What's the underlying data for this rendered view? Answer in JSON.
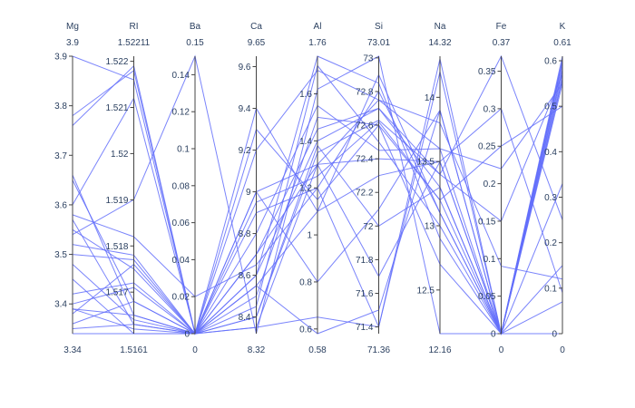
{
  "chart_data": {
    "type": "parallel_coordinates",
    "line_color": "#636efa",
    "dimensions": [
      {
        "label": "Mg",
        "range": [
          3.34,
          3.9
        ],
        "range_labels": {
          "min": "3.34",
          "max": "3.9"
        },
        "ticks": [
          {
            "v": 3.4,
            "t": "3.4"
          },
          {
            "v": 3.5,
            "t": "3.5"
          },
          {
            "v": 3.6,
            "t": "3.6"
          },
          {
            "v": 3.7,
            "t": "3.7"
          },
          {
            "v": 3.8,
            "t": "3.8"
          },
          {
            "v": 3.9,
            "t": "3.9"
          }
        ]
      },
      {
        "label": "RI",
        "range": [
          1.5161,
          1.52211
        ],
        "range_labels": {
          "min": "1.5161",
          "max": "1.52211"
        },
        "ticks": [
          {
            "v": 1.517,
            "t": "1.517"
          },
          {
            "v": 1.518,
            "t": "1.518"
          },
          {
            "v": 1.519,
            "t": "1.519"
          },
          {
            "v": 1.52,
            "t": "1.52"
          },
          {
            "v": 1.521,
            "t": "1.521"
          },
          {
            "v": 1.522,
            "t": "1.522"
          }
        ]
      },
      {
        "label": "Ba",
        "range": [
          0,
          0.15
        ],
        "range_labels": {
          "min": "0",
          "max": "0.15"
        },
        "ticks": [
          {
            "v": 0,
            "t": "0"
          },
          {
            "v": 0.02,
            "t": "0.02"
          },
          {
            "v": 0.04,
            "t": "0.04"
          },
          {
            "v": 0.06,
            "t": "0.06"
          },
          {
            "v": 0.08,
            "t": "0.08"
          },
          {
            "v": 0.1,
            "t": "0.1"
          },
          {
            "v": 0.12,
            "t": "0.12"
          },
          {
            "v": 0.14,
            "t": "0.14"
          }
        ]
      },
      {
        "label": "Ca",
        "range": [
          8.32,
          9.65
        ],
        "range_labels": {
          "min": "8.32",
          "max": "9.65"
        },
        "ticks": [
          {
            "v": 8.4,
            "t": "8.4"
          },
          {
            "v": 8.6,
            "t": "8.6"
          },
          {
            "v": 8.8,
            "t": "8.8"
          },
          {
            "v": 9,
            "t": "9"
          },
          {
            "v": 9.2,
            "t": "9.2"
          },
          {
            "v": 9.4,
            "t": "9.4"
          },
          {
            "v": 9.6,
            "t": "9.6"
          }
        ]
      },
      {
        "label": "Al",
        "range": [
          0.58,
          1.76
        ],
        "range_labels": {
          "min": "0.58",
          "max": "1.76"
        },
        "ticks": [
          {
            "v": 0.6,
            "t": "0.6"
          },
          {
            "v": 0.8,
            "t": "0.8"
          },
          {
            "v": 1,
            "t": "1"
          },
          {
            "v": 1.2,
            "t": "1.2"
          },
          {
            "v": 1.4,
            "t": "1.4"
          },
          {
            "v": 1.6,
            "t": "1.6"
          }
        ]
      },
      {
        "label": "Si",
        "range": [
          71.36,
          73.01
        ],
        "range_labels": {
          "min": "71.36",
          "max": "73.01"
        },
        "ticks": [
          {
            "v": 71.4,
            "t": "71.4"
          },
          {
            "v": 71.6,
            "t": "71.6"
          },
          {
            "v": 71.8,
            "t": "71.8"
          },
          {
            "v": 72,
            "t": "72"
          },
          {
            "v": 72.2,
            "t": "72.2"
          },
          {
            "v": 72.4,
            "t": "72.4"
          },
          {
            "v": 72.6,
            "t": "72.6"
          },
          {
            "v": 72.8,
            "t": "72.8"
          },
          {
            "v": 73,
            "t": "73"
          }
        ]
      },
      {
        "label": "Na",
        "range": [
          12.16,
          14.32
        ],
        "range_labels": {
          "min": "12.16",
          "max": "14.32"
        },
        "ticks": [
          {
            "v": 12.5,
            "t": "12.5"
          },
          {
            "v": 13,
            "t": "13"
          },
          {
            "v": 13.5,
            "t": "13.5"
          },
          {
            "v": 14,
            "t": "14"
          }
        ]
      },
      {
        "label": "Fe",
        "range": [
          0,
          0.37
        ],
        "range_labels": {
          "min": "0",
          "max": "0.37"
        },
        "ticks": [
          {
            "v": 0,
            "t": "0"
          },
          {
            "v": 0.05,
            "t": "0.05"
          },
          {
            "v": 0.1,
            "t": "0.1"
          },
          {
            "v": 0.15,
            "t": "0.15"
          },
          {
            "v": 0.2,
            "t": "0.2"
          },
          {
            "v": 0.25,
            "t": "0.25"
          },
          {
            "v": 0.3,
            "t": "0.3"
          },
          {
            "v": 0.35,
            "t": "0.35"
          }
        ]
      },
      {
        "label": "K",
        "range": [
          0,
          0.61
        ],
        "range_labels": {
          "min": "0",
          "max": "0.61"
        },
        "ticks": [
          {
            "v": 0,
            "t": "0"
          },
          {
            "v": 0.1,
            "t": "0.1"
          },
          {
            "v": 0.2,
            "t": "0.2"
          },
          {
            "v": 0.3,
            "t": "0.3"
          },
          {
            "v": 0.4,
            "t": "0.4"
          },
          {
            "v": 0.5,
            "t": "0.5"
          },
          {
            "v": 0.6,
            "t": "0.6"
          }
        ]
      }
    ],
    "records": [
      [
        3.9,
        1.5216,
        0,
        9.4,
        1.1,
        72.3,
        13.5,
        0.3,
        0.09
      ],
      [
        3.78,
        1.5218,
        0,
        9.3,
        1.15,
        72.6,
        13.2,
        0.25,
        0.5
      ],
      [
        3.76,
        1.5219,
        0,
        9.0,
        1.3,
        72.75,
        13.6,
        0.22,
        0.55
      ],
      [
        3.66,
        1.5165,
        0,
        8.7,
        1.45,
        72.7,
        13.4,
        0.15,
        0.57
      ],
      [
        3.65,
        1.5168,
        0,
        8.95,
        1.25,
        72.62,
        13.2,
        0.0,
        0.56
      ],
      [
        3.6,
        1.5212,
        0,
        9.0,
        0.8,
        72.1,
        13.9,
        0.0,
        0.58
      ],
      [
        3.58,
        1.5182,
        0.02,
        8.65,
        1.2,
        72.8,
        13.1,
        0.0,
        0.6
      ],
      [
        3.57,
        1.5163,
        0,
        8.5,
        1.5,
        72.6,
        12.7,
        0.0,
        0.61
      ],
      [
        3.55,
        1.5175,
        0,
        8.7,
        1.3,
        72.4,
        13.5,
        0.0,
        0.58
      ],
      [
        3.54,
        1.519,
        0.15,
        8.32,
        1.62,
        73.01,
        12.16,
        0.0,
        0.0
      ],
      [
        3.52,
        1.5178,
        0,
        8.8,
        1.55,
        72.45,
        13.6,
        0.0,
        0.55
      ],
      [
        3.5,
        1.5177,
        0,
        8.6,
        1.4,
        72.7,
        13.3,
        0.0,
        0.59
      ],
      [
        3.48,
        1.5164,
        0,
        8.45,
        1.72,
        72.5,
        13.0,
        0.0,
        0.6
      ],
      [
        3.42,
        1.5172,
        0,
        8.4,
        1.35,
        72.63,
        13.4,
        0.37,
        0.25
      ],
      [
        3.4,
        1.5171,
        0,
        8.55,
        1.1,
        72.9,
        13.1,
        0.0,
        0.07
      ],
      [
        3.39,
        1.5165,
        0,
        9.2,
        1.7,
        72.75,
        13.8,
        0.09,
        0.12
      ],
      [
        3.39,
        1.5162,
        0,
        8.9,
        1.2,
        71.4,
        14.3,
        0.0,
        0.6
      ],
      [
        3.36,
        1.5168,
        0,
        8.35,
        0.65,
        71.4,
        14.2,
        0.0,
        0.57
      ],
      [
        3.35,
        1.5163,
        0,
        8.55,
        0.58,
        71.5,
        13.9,
        0.0,
        0.56
      ],
      [
        3.38,
        1.5176,
        0,
        8.4,
        1.38,
        72.0,
        13.3,
        0.0,
        0.6
      ],
      [
        3.45,
        1.5161,
        0,
        8.35,
        1.3,
        71.7,
        13.5,
        0.0,
        0.15
      ],
      [
        3.34,
        1.5161,
        0,
        8.6,
        1.76,
        72.85,
        12.9,
        0.0,
        0.33
      ]
    ]
  }
}
